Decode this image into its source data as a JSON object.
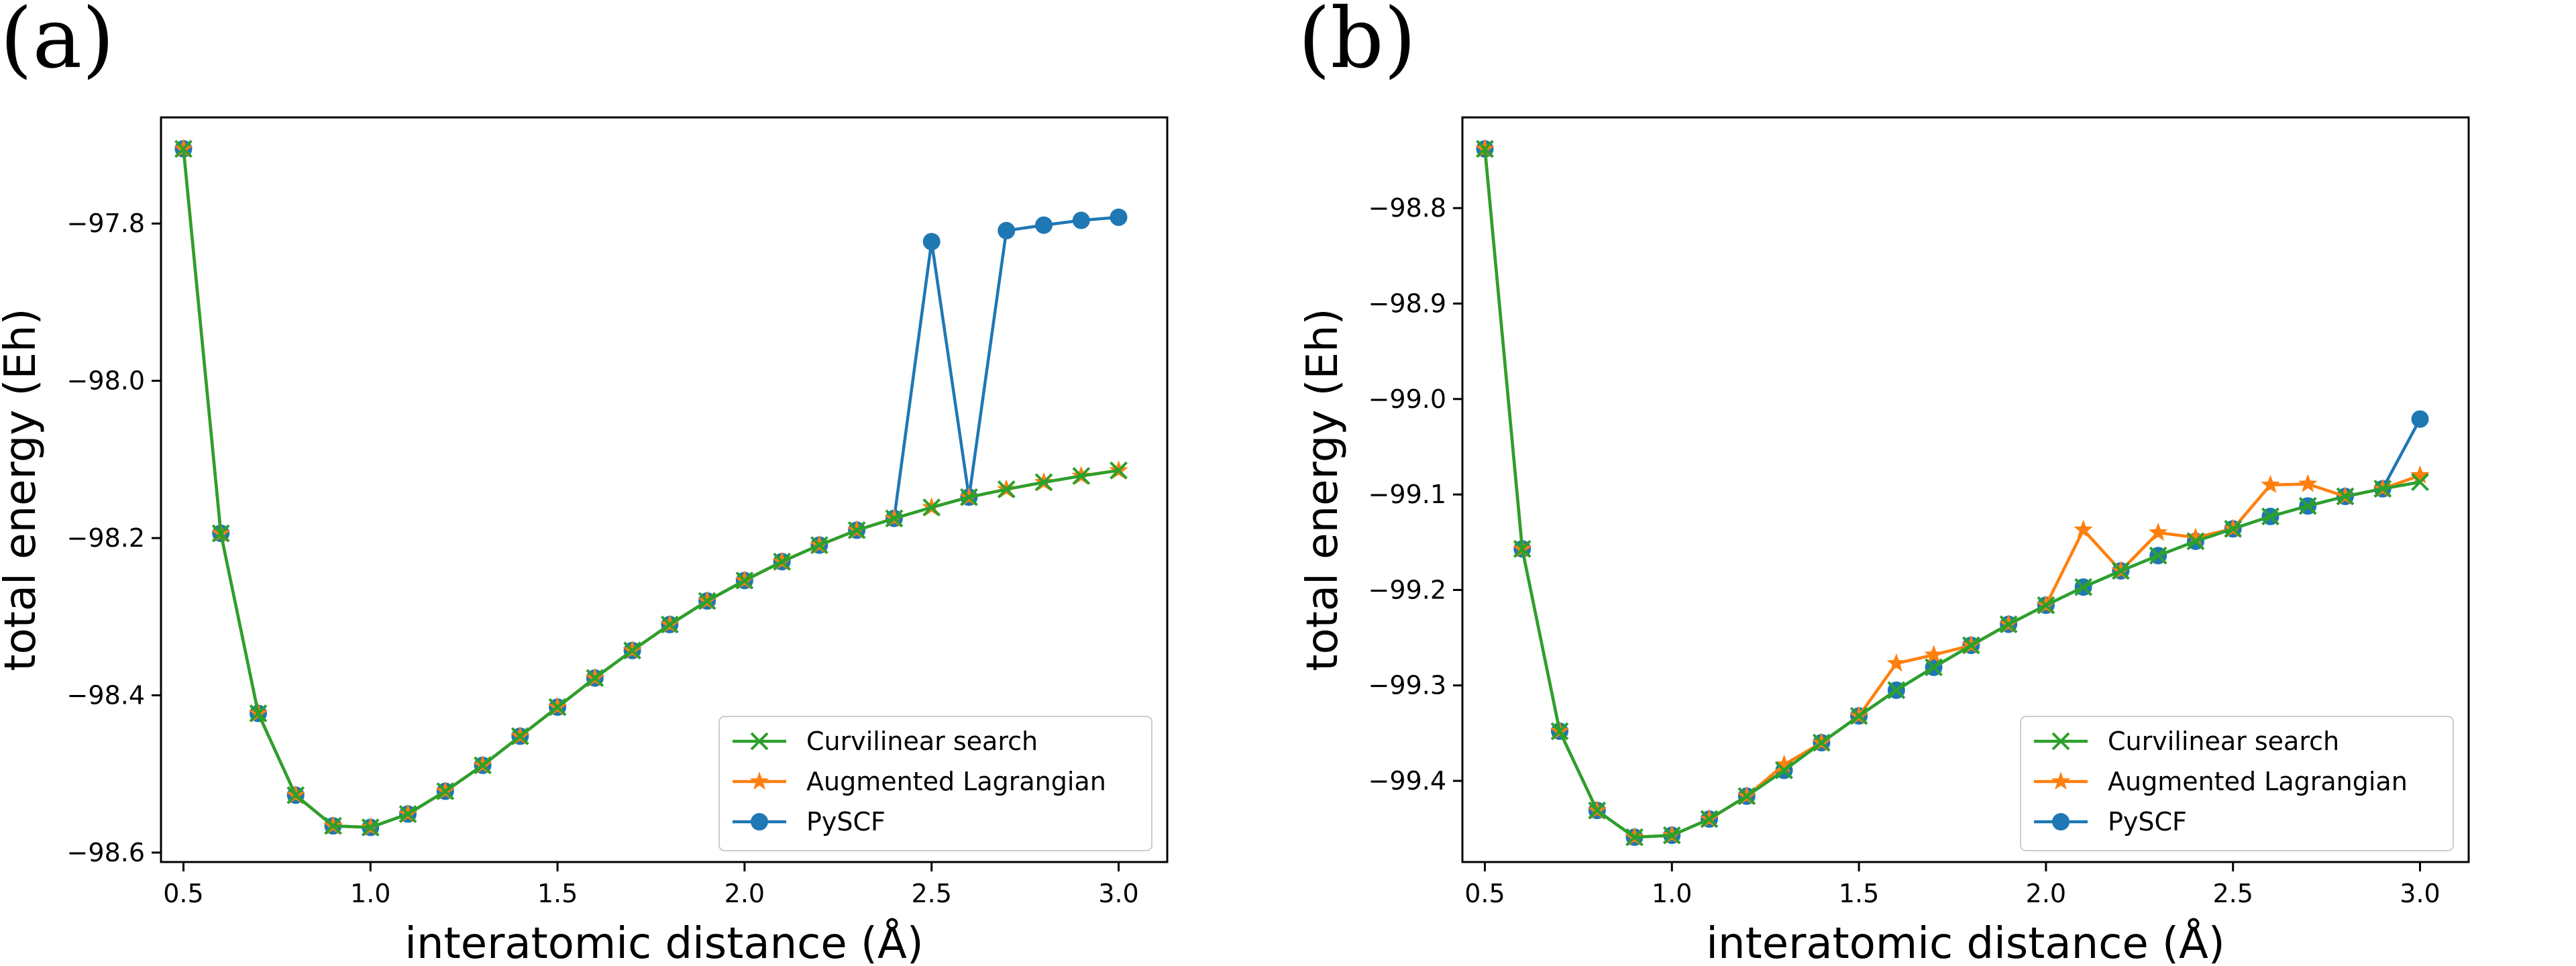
{
  "chart_data": [
    {
      "panel_label": "(a)",
      "type": "line",
      "xlabel": "interatomic distance (Å)",
      "ylabel": "total energy (Eh)",
      "xlim": [
        0.44,
        3.13
      ],
      "ylim": [
        -98.612,
        -97.665
      ],
      "xticks": [
        "0.5",
        "1.0",
        "1.5",
        "2.0",
        "2.5",
        "3.0"
      ],
      "xtick_values": [
        0.5,
        1.0,
        1.5,
        2.0,
        2.5,
        3.0
      ],
      "yticks": [
        "−97.8",
        "−98.0",
        "−98.2",
        "−98.4",
        "−98.6"
      ],
      "ytick_values": [
        -97.8,
        -98.0,
        -98.2,
        -98.4,
        -98.6
      ],
      "legend_position": "lower right",
      "x": [
        0.5,
        0.6,
        0.7,
        0.8,
        0.9,
        1.0,
        1.1,
        1.2,
        1.3,
        1.4,
        1.5,
        1.6,
        1.7,
        1.8,
        1.9,
        2.0,
        2.1,
        2.2,
        2.3,
        2.4,
        2.5,
        2.6,
        2.7,
        2.8,
        2.9,
        3.0
      ],
      "series": [
        {
          "name": "PySCF",
          "color": "#1f77b4",
          "marker": "circle",
          "values": [
            -97.705,
            -98.194,
            -98.423,
            -98.527,
            -98.566,
            -98.568,
            -98.551,
            -98.522,
            -98.489,
            -98.452,
            -98.415,
            -98.378,
            -98.343,
            -98.31,
            -98.28,
            -98.254,
            -98.23,
            -98.209,
            -98.19,
            -98.175,
            -97.823,
            -98.148,
            -97.809,
            -97.802,
            -97.796,
            -97.792
          ]
        },
        {
          "name": "Augmented Lagrangian",
          "color": "#ff7f0e",
          "marker": "star",
          "values": [
            -97.705,
            -98.194,
            -98.423,
            -98.527,
            -98.566,
            -98.568,
            -98.551,
            -98.522,
            -98.489,
            -98.452,
            -98.415,
            -98.378,
            -98.343,
            -98.31,
            -98.28,
            -98.254,
            -98.23,
            -98.209,
            -98.19,
            -98.175,
            -98.161,
            -98.148,
            -98.138,
            -98.129,
            -98.121,
            -98.114
          ]
        },
        {
          "name": "Curvilinear search",
          "color": "#2ca02c",
          "marker": "x",
          "values": [
            -97.705,
            -98.194,
            -98.423,
            -98.527,
            -98.566,
            -98.568,
            -98.551,
            -98.522,
            -98.489,
            -98.452,
            -98.415,
            -98.378,
            -98.343,
            -98.31,
            -98.28,
            -98.254,
            -98.23,
            -98.209,
            -98.19,
            -98.175,
            -98.161,
            -98.148,
            -98.138,
            -98.129,
            -98.121,
            -98.114
          ]
        }
      ]
    },
    {
      "panel_label": "(b)",
      "type": "line",
      "xlabel": "interatomic distance (Å)",
      "ylabel": "total energy (Eh)",
      "xlim": [
        0.44,
        3.13
      ],
      "ylim": [
        -99.485,
        -98.705
      ],
      "xticks": [
        "0.5",
        "1.0",
        "1.5",
        "2.0",
        "2.5",
        "3.0"
      ],
      "xtick_values": [
        0.5,
        1.0,
        1.5,
        2.0,
        2.5,
        3.0
      ],
      "yticks": [
        "−98.8",
        "−98.9",
        "−99.0",
        "−99.1",
        "−99.2",
        "−99.3",
        "−99.4"
      ],
      "ytick_values": [
        -98.8,
        -98.9,
        -99.0,
        -99.1,
        -99.2,
        -99.3,
        -99.4
      ],
      "legend_position": "lower right",
      "x": [
        0.5,
        0.6,
        0.7,
        0.8,
        0.9,
        1.0,
        1.1,
        1.2,
        1.3,
        1.4,
        1.5,
        1.6,
        1.7,
        1.8,
        1.9,
        2.0,
        2.1,
        2.2,
        2.3,
        2.4,
        2.5,
        2.6,
        2.7,
        2.8,
        2.9,
        3.0
      ],
      "series": [
        {
          "name": "PySCF",
          "color": "#1f77b4",
          "marker": "circle",
          "values": [
            -98.738,
            -99.157,
            -99.348,
            -99.431,
            -99.459,
            -99.457,
            -99.44,
            -99.416,
            -99.389,
            -99.36,
            -99.332,
            -99.305,
            -99.281,
            -99.258,
            -99.236,
            -99.216,
            -99.197,
            -99.18,
            -99.164,
            -99.149,
            -99.136,
            -99.123,
            -99.112,
            -99.102,
            -99.094,
            -99.021
          ]
        },
        {
          "name": "Augmented Lagrangian",
          "color": "#ff7f0e",
          "marker": "star",
          "values": [
            -98.738,
            -99.157,
            -99.348,
            -99.431,
            -99.459,
            -99.457,
            -99.44,
            -99.416,
            -99.383,
            -99.36,
            -99.332,
            -99.277,
            -99.268,
            -99.258,
            -99.236,
            -99.216,
            -99.137,
            -99.18,
            -99.14,
            -99.145,
            -99.136,
            -99.09,
            -99.089,
            -99.102,
            -99.094,
            -99.08
          ]
        },
        {
          "name": "Curvilinear search",
          "color": "#2ca02c",
          "marker": "x",
          "values": [
            -98.738,
            -99.157,
            -99.348,
            -99.431,
            -99.459,
            -99.457,
            -99.44,
            -99.416,
            -99.389,
            -99.36,
            -99.332,
            -99.305,
            -99.281,
            -99.258,
            -99.236,
            -99.216,
            -99.197,
            -99.18,
            -99.164,
            -99.149,
            -99.136,
            -99.123,
            -99.112,
            -99.102,
            -99.094,
            -99.087
          ]
        }
      ]
    }
  ]
}
